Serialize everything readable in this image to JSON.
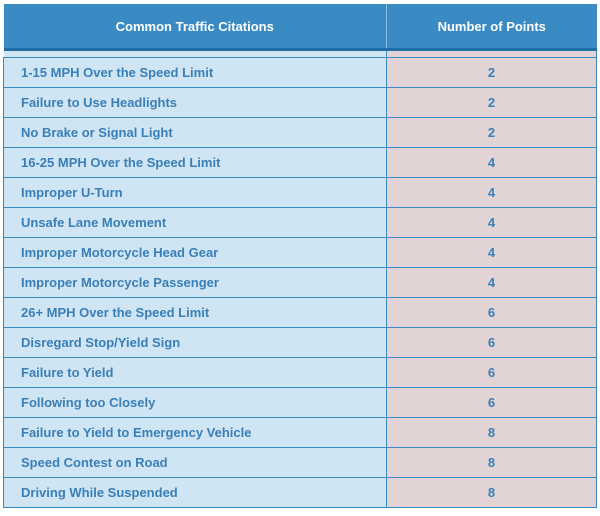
{
  "table": {
    "header": {
      "citation": "Common Traffic Citations",
      "points": "Number of Points"
    },
    "rows": [
      {
        "citation": "1-15 MPH Over the Speed Limit",
        "points": "2"
      },
      {
        "citation": "Failure to Use Headlights",
        "points": "2"
      },
      {
        "citation": "No Brake or Signal Light",
        "points": "2"
      },
      {
        "citation": "16-25 MPH Over the Speed Limit",
        "points": "4"
      },
      {
        "citation": "Improper U-Turn",
        "points": "4"
      },
      {
        "citation": "Unsafe Lane Movement",
        "points": "4"
      },
      {
        "citation": "Improper Motorcycle Head Gear",
        "points": "4"
      },
      {
        "citation": "Improper Motorcycle Passenger",
        "points": "4"
      },
      {
        "citation": "26+ MPH Over the Speed Limit",
        "points": "6"
      },
      {
        "citation": "Disregard Stop/Yield Sign",
        "points": "6"
      },
      {
        "citation": "Failure to Yield",
        "points": "6"
      },
      {
        "citation": "Following too Closely",
        "points": "6"
      },
      {
        "citation": "Failure to Yield to Emergency Vehicle",
        "points": "8"
      },
      {
        "citation": "Speed Contest on Road",
        "points": "8"
      },
      {
        "citation": "Driving While Suspended",
        "points": "8"
      }
    ],
    "colors": {
      "header_bg": "#3a8bc4",
      "header_text": "#ffffff",
      "citation_cell_bg": "#cfe5f3",
      "points_cell_bg": "#e2d4d4",
      "body_text": "#3a7fb8",
      "grid_line": "#3a8bc4"
    }
  }
}
